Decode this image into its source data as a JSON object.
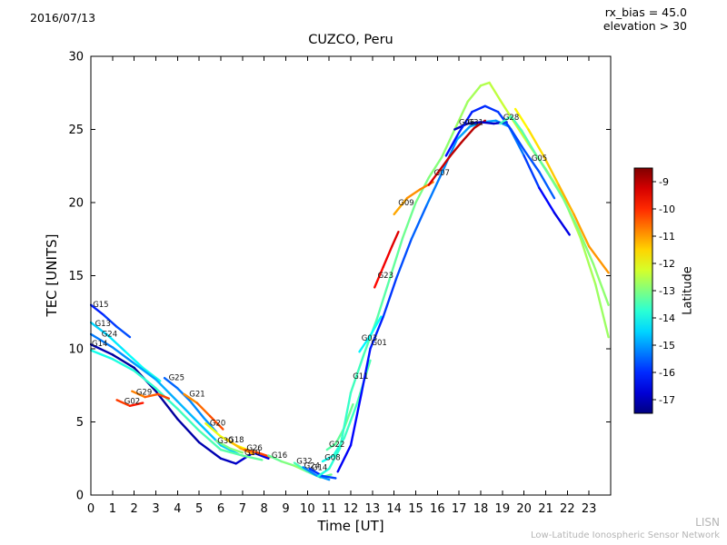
{
  "header": {
    "date": "2016/07/13",
    "rx_bias": "rx_bias = 45.0",
    "elevation": "elevation > 30"
  },
  "footer": {
    "brand": "LISN",
    "network": "Low-Latitude Ionospheric Sensor Network"
  },
  "chart_data": {
    "type": "line",
    "title": "CUZCO, Peru",
    "xlabel": "Time [UT]",
    "ylabel": "TEC [UNITS]",
    "xlim": [
      0,
      24
    ],
    "ylim": [
      0,
      30
    ],
    "xticks": [
      0,
      1,
      2,
      3,
      4,
      5,
      6,
      7,
      8,
      9,
      10,
      11,
      12,
      13,
      14,
      15,
      16,
      17,
      18,
      19,
      20,
      21,
      22,
      23
    ],
    "yticks": [
      0,
      5,
      10,
      15,
      20,
      25,
      30
    ],
    "grid": false,
    "colorbar": {
      "label": "Latitude",
      "colormap": "jet",
      "domain": [
        -8.5,
        -17.5
      ],
      "ticks": [
        -9,
        -10,
        -11,
        -12,
        -13,
        -14,
        -15,
        -16,
        -17
      ]
    },
    "series": [
      {
        "name": "G15",
        "label_at": [
          0.05,
          12.85
        ],
        "points": [
          [
            0,
            13.0,
            -16.2
          ],
          [
            0.6,
            12.3,
            -16.0
          ],
          [
            1.2,
            11.5,
            -15.8
          ],
          [
            1.8,
            10.8,
            -15.6
          ]
        ]
      },
      {
        "name": "G13",
        "label_at": [
          0.15,
          11.55
        ],
        "points": [
          [
            0,
            11.8,
            -14.6
          ],
          [
            0.8,
            10.9,
            -14.4
          ],
          [
            1.6,
            9.8,
            -14.2
          ],
          [
            2.4,
            8.7,
            -14.0
          ],
          [
            3.2,
            7.8,
            -13.9
          ]
        ]
      },
      {
        "name": "G24",
        "label_at": [
          0.45,
          10.85
        ],
        "points": [
          [
            0,
            11.0,
            -15.4
          ],
          [
            1,
            10.1,
            -15.2
          ],
          [
            2,
            9.0,
            -15.0
          ],
          [
            3,
            7.9,
            -14.9
          ],
          [
            4,
            6.4,
            -14.8
          ],
          [
            5,
            4.9,
            -14.7
          ],
          [
            6,
            3.4,
            -14.6
          ],
          [
            6.8,
            2.8,
            -14.5
          ]
        ]
      },
      {
        "name": "G14",
        "label_at": [
          0.0,
          10.2
        ],
        "points": [
          [
            0,
            10.3,
            -17.0
          ],
          [
            1,
            9.6,
            -17.2
          ],
          [
            2,
            8.7,
            -17.3
          ],
          [
            3,
            7.1,
            -17.3
          ],
          [
            4,
            5.2,
            -17.2
          ],
          [
            5,
            3.6,
            -17.1
          ],
          [
            6,
            2.5,
            -17.0
          ],
          [
            6.7,
            2.15,
            -16.9
          ],
          [
            7.5,
            2.9,
            -16.7
          ],
          [
            8.2,
            2.5,
            -16.5
          ]
        ]
      },
      {
        "name": "G10",
        "label_at": [
          7.05,
          2.72
        ],
        "points": [
          [
            0,
            9.9,
            -14.0
          ],
          [
            1,
            9.3,
            -13.9
          ],
          [
            2,
            8.5,
            -13.8
          ],
          [
            3,
            7.3,
            -13.7
          ],
          [
            4,
            5.9,
            -13.6
          ],
          [
            5,
            4.4,
            -13.5
          ],
          [
            6,
            3.1,
            -13.4
          ],
          [
            7,
            2.7,
            -13.3
          ],
          [
            7.9,
            2.4,
            -13.2
          ]
        ]
      },
      {
        "name": "G02",
        "label_at": [
          1.5,
          6.25
        ],
        "points": [
          [
            1.2,
            6.5,
            -10.3
          ],
          [
            1.8,
            6.1,
            -10.0
          ],
          [
            2.4,
            6.3,
            -9.7
          ]
        ]
      },
      {
        "name": "G29",
        "label_at": [
          2.05,
          6.85
        ],
        "points": [
          [
            1.9,
            7.1,
            -10.9
          ],
          [
            2.5,
            6.7,
            -10.6
          ],
          [
            3.1,
            6.9,
            -10.3
          ],
          [
            3.6,
            6.6,
            -10.1
          ]
        ]
      },
      {
        "name": "G25",
        "label_at": [
          3.55,
          7.85
        ],
        "points": [
          [
            3.4,
            8.0,
            -15.6
          ],
          [
            4.0,
            7.3,
            -15.4
          ],
          [
            4.6,
            6.4,
            -15.2
          ],
          [
            5.2,
            5.3,
            -15.1
          ],
          [
            5.8,
            4.3,
            -15.0
          ]
        ]
      },
      {
        "name": "G21",
        "label_at": [
          4.5,
          6.75
        ],
        "points": [
          [
            4.3,
            6.9,
            -11.0
          ],
          [
            4.9,
            6.3,
            -10.7
          ],
          [
            5.5,
            5.4,
            -10.4
          ],
          [
            6.1,
            4.5,
            -10.2
          ]
        ]
      },
      {
        "name": "G20",
        "label_at": [
          5.45,
          4.75
        ],
        "points": [
          [
            5.3,
            4.9,
            -12.1
          ],
          [
            6.0,
            4.0,
            -12.0
          ],
          [
            6.7,
            3.4,
            -11.9
          ],
          [
            7.4,
            3.0,
            -11.8
          ]
        ]
      },
      {
        "name": "G30",
        "label_at": [
          5.8,
          3.55
        ],
        "points": [
          [
            5.8,
            3.7,
            -13.1
          ],
          [
            6.4,
            3.2,
            -13.0
          ],
          [
            7.0,
            2.9,
            -12.9
          ]
        ]
      },
      {
        "name": "G18",
        "label_at": [
          6.3,
          3.6
        ],
        "points": [
          [
            6.3,
            3.8,
            -11.4
          ],
          [
            6.9,
            3.2,
            -11.2
          ],
          [
            7.5,
            2.8,
            -11.0
          ]
        ]
      },
      {
        "name": "G26",
        "label_at": [
          7.15,
          3.05
        ],
        "points": [
          [
            7.1,
            3.1,
            -10.6
          ],
          [
            7.7,
            2.9,
            -10.3
          ],
          [
            8.3,
            2.6,
            -10.1
          ]
        ]
      },
      {
        "name": "G16",
        "label_at": [
          8.3,
          2.55
        ],
        "points": [
          [
            8.2,
            2.7,
            -13.3
          ],
          [
            8.8,
            2.3,
            -13.1
          ],
          [
            9.4,
            2.0,
            -12.9
          ],
          [
            10.0,
            1.6,
            -12.8
          ]
        ]
      },
      {
        "name": "G32",
        "label_at": [
          9.45,
          2.15
        ],
        "points": [
          [
            9.4,
            2.2,
            -13.6
          ],
          [
            10.0,
            1.6,
            -13.4
          ],
          [
            10.6,
            1.2,
            -13.2
          ],
          [
            11.1,
            1.4,
            -13.1
          ]
        ]
      },
      {
        "name": "G24",
        "label_at": [
          9.8,
          1.82
        ],
        "points": [
          [
            9.8,
            1.9,
            -15.3
          ],
          [
            10.4,
            1.35,
            -15.1
          ],
          [
            11.0,
            1.05,
            -15.0
          ]
        ]
      },
      {
        "name": "G14",
        "label_at": [
          10.15,
          1.72
        ],
        "points": [
          [
            10.1,
            1.8,
            -16.0
          ],
          [
            10.7,
            1.3,
            -15.8
          ],
          [
            11.3,
            1.15,
            -15.7
          ]
        ]
      },
      {
        "name": "G22",
        "label_at": [
          10.95,
          3.3
        ],
        "points": [
          [
            10.9,
            3.1,
            -13.4
          ],
          [
            11.3,
            3.5,
            -13.3
          ],
          [
            11.7,
            4.6,
            -13.2
          ],
          [
            12.1,
            6.2,
            -13.1
          ]
        ]
      },
      {
        "name": "G08",
        "label_at": [
          10.75,
          2.4
        ],
        "points": [
          [
            10.7,
            2.3,
            -14.1
          ],
          [
            11.2,
            2.7,
            -13.9
          ],
          [
            11.7,
            3.9,
            -13.7
          ],
          [
            12.3,
            6.3,
            -13.5
          ],
          [
            12.9,
            9.2,
            -13.4
          ]
        ]
      },
      {
        "name": "G11",
        "label_at": [
          12.05,
          7.95
        ],
        "points": [
          [
            10.5,
            1.3,
            -13.9
          ],
          [
            11.0,
            1.8,
            -13.8
          ],
          [
            11.5,
            3.2,
            -13.7
          ],
          [
            12.0,
            7.0,
            -13.6
          ],
          [
            12.6,
            9.6,
            -13.5
          ],
          [
            13.2,
            12.0,
            -13.4
          ],
          [
            13.8,
            14.8,
            -13.3
          ],
          [
            14.4,
            17.6,
            -13.2
          ],
          [
            15.0,
            20.0,
            -13.1
          ],
          [
            15.6,
            21.7,
            -13.0
          ],
          [
            16.2,
            23.1,
            -12.9
          ],
          [
            16.8,
            25.0,
            -12.8
          ],
          [
            17.4,
            26.9,
            -12.7
          ],
          [
            18.0,
            28.0,
            -12.6
          ],
          [
            18.4,
            28.2,
            -12.5
          ],
          [
            18.9,
            27.0,
            -12.4
          ],
          [
            19.5,
            25.6,
            -12.3
          ],
          [
            20.2,
            24.0,
            -12.3
          ],
          [
            21.0,
            22.3,
            -12.4
          ],
          [
            21.8,
            20.4,
            -12.5
          ],
          [
            22.6,
            17.6,
            -12.6
          ],
          [
            23.3,
            14.4,
            -12.7
          ],
          [
            23.9,
            10.8,
            -12.8
          ]
        ]
      },
      {
        "name": "G03",
        "label_at": [
          12.45,
          10.55
        ],
        "points": [
          [
            12.4,
            9.8,
            -14.3
          ],
          [
            12.9,
            10.9,
            -14.1
          ],
          [
            13.4,
            12.2,
            -14.0
          ]
        ]
      },
      {
        "name": "G01",
        "label_at": [
          12.9,
          10.25
        ],
        "points": [
          [
            11.4,
            1.6,
            -16.5
          ],
          [
            12.0,
            3.4,
            -16.4
          ],
          [
            12.5,
            7.0,
            -16.3
          ],
          [
            12.9,
            10.0,
            -16.2
          ],
          [
            13.5,
            12.2,
            -16.0
          ],
          [
            14.1,
            14.8,
            -15.8
          ],
          [
            14.8,
            17.5,
            -15.6
          ],
          [
            15.5,
            19.8,
            -15.4
          ],
          [
            16.2,
            22.0,
            -15.2
          ],
          [
            16.9,
            24.3,
            -15.0
          ],
          [
            17.5,
            25.2,
            -14.9
          ],
          [
            18.1,
            25.5,
            -14.9
          ],
          [
            18.7,
            25.6,
            -15.0
          ],
          [
            19.3,
            25.2,
            -15.2
          ],
          [
            20.0,
            23.2,
            -15.5
          ],
          [
            20.7,
            21.0,
            -16.2
          ],
          [
            21.4,
            19.3,
            -16.5
          ],
          [
            22.1,
            17.8,
            -16.7
          ]
        ]
      },
      {
        "name": "G23",
        "label_at": [
          13.2,
          14.85
        ],
        "points": [
          [
            13.1,
            14.2,
            -9.8
          ],
          [
            13.5,
            15.6,
            -9.6
          ],
          [
            13.9,
            17.0,
            -9.4
          ],
          [
            14.2,
            18.0,
            -9.3
          ]
        ]
      },
      {
        "name": "G09",
        "label_at": [
          14.15,
          19.8
        ],
        "points": [
          [
            14.0,
            19.2,
            -11.2
          ],
          [
            14.6,
            20.3,
            -11.0
          ],
          [
            15.2,
            20.9,
            -10.8
          ],
          [
            15.8,
            21.4,
            -10.7
          ]
        ]
      },
      {
        "name": "G07",
        "label_at": [
          15.8,
          21.85
        ],
        "points": [
          [
            15.6,
            21.2,
            -9.4
          ],
          [
            16.1,
            22.2,
            -9.2
          ],
          [
            16.6,
            23.2,
            -9.1
          ],
          [
            17.1,
            24.1,
            -9.0
          ],
          [
            17.7,
            25.1,
            -9.0
          ],
          [
            18.2,
            25.6,
            -9.0
          ]
        ]
      },
      {
        "name": "G06",
        "label_at": [
          16.95,
          25.3
        ],
        "points": [
          [
            16.8,
            25.0,
            -17.0
          ],
          [
            17.4,
            25.4,
            -16.9
          ],
          [
            18.0,
            25.5,
            -16.9
          ],
          [
            18.6,
            25.4,
            -16.8
          ],
          [
            19.2,
            25.5,
            -16.9
          ]
        ]
      },
      {
        "name": "G31",
        "label_at": [
          17.35,
          25.3
        ],
        "points": [
          [
            16.4,
            23.2,
            -16.3
          ],
          [
            17.0,
            24.8,
            -16.2
          ],
          [
            17.6,
            26.2,
            -16.1
          ],
          [
            18.2,
            26.6,
            -16.0
          ],
          [
            18.8,
            26.2,
            -15.9
          ],
          [
            19.4,
            25.0,
            -15.8
          ],
          [
            20.0,
            23.6,
            -15.7
          ],
          [
            20.7,
            22.1,
            -15.6
          ],
          [
            21.4,
            20.3,
            -15.5
          ]
        ]
      },
      {
        "name": "G28",
        "label_at": [
          19.0,
          25.65
        ],
        "points": [
          [
            18.9,
            25.4,
            -13.6
          ],
          [
            19.4,
            25.9,
            -13.5
          ],
          [
            19.9,
            24.9,
            -13.4
          ],
          [
            20.5,
            23.4,
            -13.3
          ],
          [
            21.1,
            22.0,
            -13.2
          ],
          [
            21.8,
            20.3,
            -13.1
          ],
          [
            22.5,
            18.2,
            -13.0
          ],
          [
            23.2,
            15.8,
            -12.9
          ],
          [
            23.9,
            13.0,
            -12.8
          ]
        ]
      },
      {
        "name": "G05",
        "label_at": [
          20.3,
          22.85
        ],
        "points": [
          [
            19.6,
            26.4,
            -11.9
          ],
          [
            20.2,
            25.0,
            -11.7
          ],
          [
            20.9,
            23.2,
            -11.5
          ],
          [
            21.6,
            21.2,
            -11.3
          ],
          [
            22.3,
            19.2,
            -11.1
          ],
          [
            23.0,
            17.0,
            -11.0
          ],
          [
            23.9,
            15.2,
            -10.9
          ]
        ]
      }
    ]
  }
}
